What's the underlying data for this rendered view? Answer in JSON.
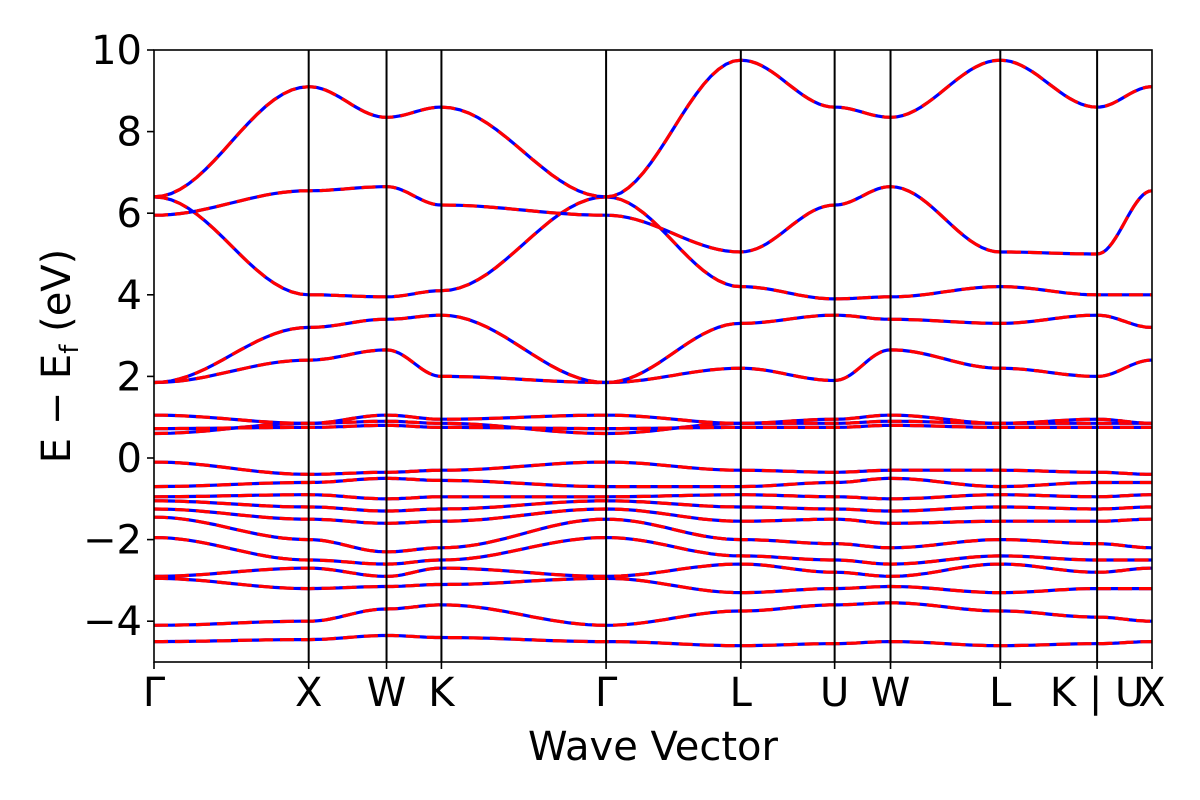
{
  "chart_data": {
    "type": "line",
    "title": "",
    "xlabel": "Wave Vector",
    "ylabel": "E − E_f (eV)",
    "ylabel_main": "E − E",
    "ylabel_sub": "f",
    "ylabel_unit": " (eV)",
    "ylim": [
      -5,
      10
    ],
    "yticks": [
      -4,
      -2,
      0,
      2,
      4,
      6,
      8,
      10
    ],
    "ytick_labels": [
      "−4",
      "−2",
      "0",
      "2",
      "4",
      "6",
      "8",
      "10"
    ],
    "xlim": [
      0,
      1
    ],
    "kpoints": [
      {
        "label": "Γ",
        "x": 0.0
      },
      {
        "label": "X",
        "x": 0.155
      },
      {
        "label": "W",
        "x": 0.233
      },
      {
        "label": "K",
        "x": 0.288
      },
      {
        "label": "Γ",
        "x": 0.453
      },
      {
        "label": "L",
        "x": 0.588
      },
      {
        "label": "U",
        "x": 0.682
      },
      {
        "label": "W",
        "x": 0.738
      },
      {
        "label": "L",
        "x": 0.848
      },
      {
        "label": "K | U",
        "x": 0.945
      },
      {
        "label": "X",
        "x": 1.0
      }
    ],
    "series_style": [
      {
        "color": "#0000ff",
        "style": "solid"
      },
      {
        "color": "#ff0000",
        "style": "dashed"
      }
    ],
    "bands": [
      [
        -4.5,
        -4.45,
        -4.35,
        -4.4,
        -4.5,
        -4.6,
        -4.55,
        -4.5,
        -4.6,
        -4.55,
        -4.5
      ],
      [
        -4.1,
        -4.0,
        -3.7,
        -3.6,
        -4.1,
        -3.75,
        -3.6,
        -3.55,
        -3.75,
        -3.9,
        -4.0
      ],
      [
        -2.95,
        -3.2,
        -3.15,
        -3.1,
        -2.95,
        -3.3,
        -3.2,
        -3.15,
        -3.3,
        -3.2,
        -3.2
      ],
      [
        -2.9,
        -2.7,
        -2.9,
        -2.7,
        -2.9,
        -2.6,
        -2.8,
        -2.9,
        -2.6,
        -2.8,
        -2.7
      ],
      [
        -1.95,
        -2.5,
        -2.6,
        -2.5,
        -1.95,
        -2.4,
        -2.5,
        -2.6,
        -2.4,
        -2.5,
        -2.5
      ],
      [
        -1.45,
        -2.0,
        -2.3,
        -2.2,
        -1.5,
        -2.0,
        -2.1,
        -2.2,
        -2.0,
        -2.1,
        -2.2
      ],
      [
        -1.25,
        -1.5,
        -1.6,
        -1.55,
        -1.25,
        -1.55,
        -1.5,
        -1.6,
        -1.55,
        -1.55,
        -1.5
      ],
      [
        -1.05,
        -1.2,
        -1.3,
        -1.25,
        -1.05,
        -1.2,
        -1.25,
        -1.3,
        -1.2,
        -1.25,
        -1.2
      ],
      [
        -0.95,
        -0.9,
        -1.0,
        -0.95,
        -0.95,
        -0.9,
        -0.95,
        -1.0,
        -0.9,
        -0.95,
        -0.9
      ],
      [
        -0.7,
        -0.6,
        -0.5,
        -0.55,
        -0.7,
        -0.7,
        -0.6,
        -0.5,
        -0.7,
        -0.6,
        -0.6
      ],
      [
        -0.1,
        -0.4,
        -0.35,
        -0.3,
        -0.1,
        -0.3,
        -0.35,
        -0.3,
        -0.3,
        -0.35,
        -0.4
      ],
      [
        0.6,
        0.85,
        0.9,
        0.85,
        0.6,
        0.85,
        0.85,
        0.9,
        0.85,
        0.85,
        0.85
      ],
      [
        0.72,
        0.75,
        0.8,
        0.75,
        0.72,
        0.75,
        0.75,
        0.8,
        0.75,
        0.75,
        0.75
      ],
      [
        1.05,
        0.85,
        1.05,
        0.95,
        1.05,
        0.85,
        0.95,
        1.05,
        0.85,
        0.95,
        0.85
      ],
      [
        1.85,
        2.4,
        2.65,
        2.0,
        1.85,
        2.2,
        1.9,
        2.65,
        2.2,
        2.0,
        2.4
      ],
      [
        1.85,
        3.2,
        3.4,
        3.5,
        1.85,
        3.3,
        3.5,
        3.4,
        3.3,
        3.5,
        3.2
      ],
      [
        6.4,
        4.0,
        3.95,
        4.1,
        6.4,
        4.2,
        3.9,
        3.95,
        4.2,
        4.0,
        4.0
      ],
      [
        5.95,
        6.55,
        6.65,
        6.2,
        5.95,
        5.05,
        6.2,
        6.65,
        5.05,
        5.0,
        6.55
      ],
      [
        6.4,
        9.1,
        8.35,
        8.6,
        6.4,
        9.75,
        8.6,
        8.35,
        9.75,
        8.6,
        9.1
      ]
    ]
  }
}
